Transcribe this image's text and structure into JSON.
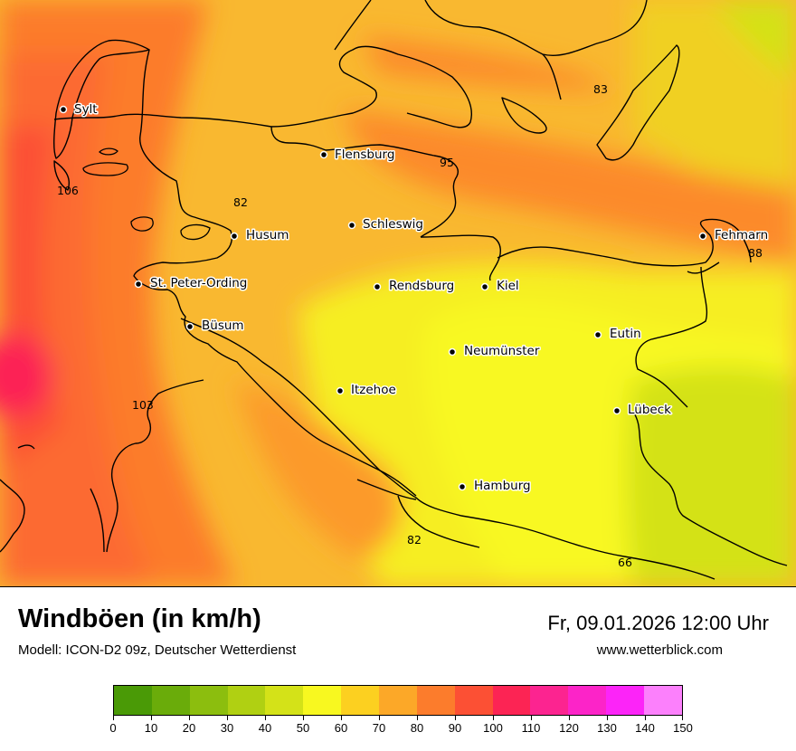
{
  "title": "Windböen (in km/h)",
  "subtitle": "Modell: ICON-D2 09z, Deutscher Wetterdienst",
  "datetime": "Fr, 09.01.2026 12:00 Uhr",
  "website": "www.wetterblick.com",
  "cities": [
    {
      "name": "Sylt"
    },
    {
      "name": "Flensburg"
    },
    {
      "name": "Schleswig"
    },
    {
      "name": "Husum"
    },
    {
      "name": "Fehmarn"
    },
    {
      "name": "St. Peter-Ording"
    },
    {
      "name": "Rendsburg"
    },
    {
      "name": "Kiel"
    },
    {
      "name": "Büsum"
    },
    {
      "name": "Eutin"
    },
    {
      "name": "Neumünster"
    },
    {
      "name": "Itzehoe"
    },
    {
      "name": "Lübeck"
    },
    {
      "name": "Hamburg"
    }
  ],
  "values": [
    "83",
    "95",
    "106",
    "82",
    "88",
    "103",
    "82",
    "66"
  ],
  "legend": {
    "colors": [
      "#4a9a06",
      "#6aac0a",
      "#8cbe0e",
      "#b0d012",
      "#d4e218",
      "#f8f820",
      "#fcd020",
      "#fca828",
      "#fc7c2c",
      "#fc5034",
      "#fc2454",
      "#fc2490",
      "#fc24c8",
      "#fc24f8",
      "#fc80fc"
    ],
    "ticks": [
      "0",
      "10",
      "20",
      "30",
      "40",
      "50",
      "60",
      "70",
      "80",
      "90",
      "100",
      "110",
      "120",
      "130",
      "140",
      "150"
    ]
  }
}
